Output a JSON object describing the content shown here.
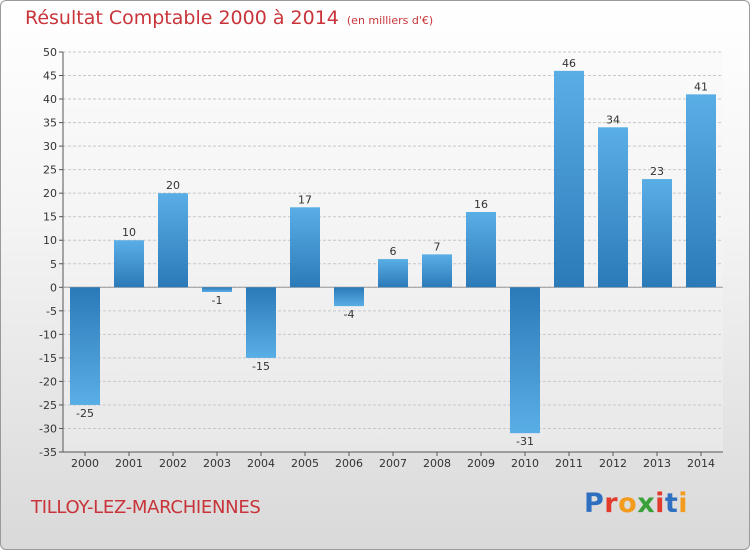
{
  "chart_data": {
    "type": "bar",
    "title": "Résultat Comptable 2000 à 2014",
    "subtitle": "(en milliers d'€)",
    "categories": [
      "2000",
      "2001",
      "2002",
      "2003",
      "2004",
      "2005",
      "2006",
      "2007",
      "2008",
      "2009",
      "2010",
      "2011",
      "2012",
      "2013",
      "2014"
    ],
    "values": [
      -25,
      10,
      20,
      -1,
      -15,
      17,
      -4,
      6,
      7,
      16,
      -31,
      46,
      34,
      23,
      41
    ],
    "value_labels": [
      "-25",
      "10",
      "20",
      "-1",
      "-15",
      "17",
      "-4",
      "6",
      "7",
      "16",
      "-31",
      "46",
      "34",
      "23",
      "41"
    ],
    "ylim": [
      -35,
      50
    ],
    "yticks": [
      50,
      45,
      40,
      35,
      30,
      25,
      20,
      15,
      10,
      5,
      0,
      -5,
      -10,
      -15,
      -20,
      -25,
      -30,
      -35
    ],
    "ytick_labels": [
      "50",
      "45",
      "40",
      "35",
      "30",
      "25",
      "20",
      "15",
      "10",
      "5",
      "0",
      "-5",
      "-10",
      "-15",
      "-20",
      "-25",
      "-30",
      "-35"
    ],
    "xlabel": "",
    "ylabel": "",
    "grid": true,
    "colors": {
      "bar_light": "#5aaee6",
      "bar_dark": "#2b7ab8",
      "title": "#c8343a"
    }
  },
  "footer": {
    "commune": "TILLOY-LEZ-MARCHIENNES",
    "logo_letters": [
      "P",
      "r",
      "o",
      "x",
      "i",
      "t",
      "i"
    ],
    "logo_colors": [
      "#2f6fbf",
      "#e23b2e",
      "#f29b1d",
      "#3aa13a",
      "#e23b2e",
      "#2f6fbf",
      "#f29b1d"
    ]
  }
}
